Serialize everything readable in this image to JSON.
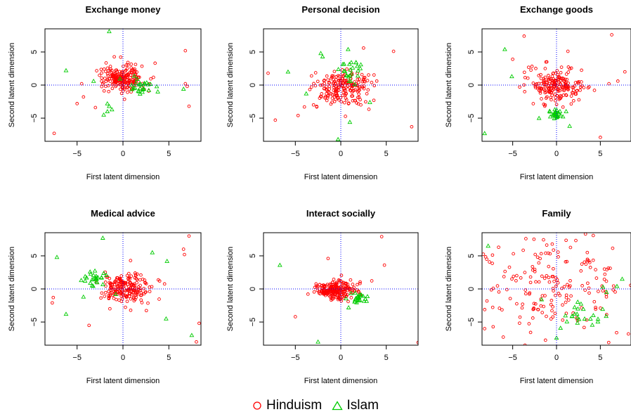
{
  "legend": {
    "hinduism_label": "Hinduism",
    "islam_label": "Islam"
  },
  "colors": {
    "hinduism": "#FF0000",
    "islam": "#00CC00",
    "reference_line": "#0000FF"
  },
  "chart_data": [
    {
      "type": "scatter",
      "title": "Exchange money",
      "xlabel": "First latent dimension",
      "ylabel": "Second latent dimension",
      "xlim": [
        -8.5,
        8.5
      ],
      "ylim": [
        -8.5,
        8.5
      ],
      "x_ticks": [
        -5,
        0,
        5
      ],
      "y_ticks": [
        -5,
        0,
        5
      ],
      "reference_lines": {
        "x": 0,
        "y": 0
      },
      "series": [
        {
          "name": "Hinduism",
          "marker": "circle",
          "cluster": {
            "center": [
              0.0,
              1.0
            ],
            "sx": 1.1,
            "sy": 1.0,
            "n": 210
          },
          "outliers": [
            [
              -7.5,
              -7.3
            ],
            [
              -5.0,
              -2.8
            ],
            [
              -4.3,
              -1.8
            ],
            [
              -3.0,
              -3.4
            ],
            [
              -4.5,
              0.2
            ],
            [
              6.8,
              5.2
            ],
            [
              6.8,
              0.2
            ],
            [
              7.0,
              -0.2
            ],
            [
              7.2,
              -3.2
            ],
            [
              3.5,
              3.3
            ],
            [
              2.8,
              -0.9
            ]
          ]
        },
        {
          "name": "Islam",
          "marker": "triangle",
          "cluster": {
            "center": [
              2.0,
              -0.3
            ],
            "sx": 0.7,
            "sy": 0.6,
            "n": 26
          },
          "outliers": [
            [
              -1.5,
              8.1
            ],
            [
              -6.2,
              2.2
            ],
            [
              -3.2,
              0.6
            ],
            [
              -1.7,
              -2.8
            ],
            [
              -1.5,
              -3.2
            ],
            [
              -1.2,
              -3.7
            ],
            [
              -1.7,
              -4.0
            ],
            [
              -2.1,
              -4.5
            ],
            [
              6.6,
              -0.6
            ],
            [
              3.8,
              -1.0
            ]
          ]
        }
      ]
    },
    {
      "type": "scatter",
      "title": "Personal decision",
      "xlabel": "First latent dimension",
      "ylabel": "Second latent dimension",
      "xlim": [
        -8.5,
        8.5
      ],
      "ylim": [
        -8.5,
        8.5
      ],
      "x_ticks": [
        -5,
        0,
        5
      ],
      "y_ticks": [
        -5,
        0,
        5
      ],
      "reference_lines": {
        "x": 0,
        "y": 0
      },
      "series": [
        {
          "name": "Hinduism",
          "marker": "circle",
          "cluster": {
            "center": [
              0.0,
              -0.3
            ],
            "sx": 1.5,
            "sy": 1.3,
            "n": 200
          },
          "outliers": [
            [
              -8.0,
              1.8
            ],
            [
              -7.2,
              -5.3
            ],
            [
              -4.0,
              -3.3
            ],
            [
              -4.7,
              -4.6
            ],
            [
              5.8,
              5.1
            ],
            [
              7.8,
              -6.3
            ],
            [
              8.7,
              -4.2
            ],
            [
              8.7,
              0.5
            ],
            [
              2.5,
              5.6
            ],
            [
              -3.0,
              -3.0
            ]
          ]
        },
        {
          "name": "Islam",
          "marker": "triangle",
          "cluster": {
            "center": [
              1.2,
              2.0
            ],
            "sx": 0.5,
            "sy": 0.9,
            "n": 24
          },
          "outliers": [
            [
              -2.2,
              4.8
            ],
            [
              -2.0,
              4.3
            ],
            [
              0.8,
              5.4
            ],
            [
              -5.8,
              2.0
            ],
            [
              -3.8,
              -1.3
            ],
            [
              -0.3,
              -8.2
            ],
            [
              1.0,
              -5.6
            ],
            [
              3.2,
              -2.6
            ]
          ]
        }
      ]
    },
    {
      "type": "scatter",
      "title": "Exchange goods",
      "xlabel": "First latent dimension",
      "ylabel": "Second latent dimension",
      "xlim": [
        -8.5,
        8.5
      ],
      "ylim": [
        -8.5,
        8.5
      ],
      "x_ticks": [
        -5,
        0,
        5
      ],
      "y_ticks": [
        -5,
        0,
        5
      ],
      "reference_lines": {
        "x": 0,
        "y": 0
      },
      "series": [
        {
          "name": "Hinduism",
          "marker": "circle",
          "cluster": {
            "center": [
              0.0,
              0.0
            ],
            "sx": 1.5,
            "sy": 1.3,
            "n": 200
          },
          "outliers": [
            [
              -3.7,
              7.4
            ],
            [
              -5.0,
              3.9
            ],
            [
              6.3,
              7.6
            ],
            [
              7.8,
              2.0
            ],
            [
              7.0,
              0.6
            ],
            [
              5.0,
              -7.9
            ],
            [
              -4.2,
              -0.3
            ],
            [
              1.3,
              5.1
            ]
          ]
        },
        {
          "name": "Islam",
          "marker": "triangle",
          "cluster": {
            "center": [
              0.0,
              -4.4
            ],
            "sx": 0.45,
            "sy": 0.5,
            "n": 28
          },
          "outliers": [
            [
              -8.2,
              -7.3
            ],
            [
              -5.9,
              5.4
            ],
            [
              -5.1,
              1.3
            ],
            [
              1.5,
              -6.2
            ],
            [
              -2.0,
              -5.0
            ]
          ]
        }
      ]
    },
    {
      "type": "scatter",
      "title": "Medical advice",
      "xlabel": "First latent dimension",
      "ylabel": "Second latent dimension",
      "xlim": [
        -8.5,
        8.5
      ],
      "ylim": [
        -8.5,
        8.5
      ],
      "x_ticks": [
        -5,
        0,
        5
      ],
      "y_ticks": [
        -5,
        0,
        5
      ],
      "reference_lines": {
        "x": 0,
        "y": 0
      },
      "series": [
        {
          "name": "Hinduism",
          "marker": "circle",
          "cluster": {
            "center": [
              0.3,
              0.2
            ],
            "sx": 1.3,
            "sy": 1.1,
            "n": 200
          },
          "outliers": [
            [
              7.2,
              8.0
            ],
            [
              6.6,
              6.0
            ],
            [
              6.7,
              5.2
            ],
            [
              8.3,
              -5.2
            ],
            [
              8.0,
              -8.0
            ],
            [
              -7.6,
              -1.3
            ],
            [
              -7.7,
              -2.1
            ],
            [
              -3.7,
              -5.5
            ],
            [
              -1.8,
              1.8
            ],
            [
              4.0,
              1.2
            ]
          ]
        },
        {
          "name": "Islam",
          "marker": "triangle",
          "cluster": {
            "center": [
              -3.0,
              1.8
            ],
            "sx": 0.8,
            "sy": 0.7,
            "n": 26
          },
          "outliers": [
            [
              -7.2,
              4.8
            ],
            [
              -2.2,
              7.7
            ],
            [
              -6.2,
              -3.8
            ],
            [
              -4.3,
              -1.2
            ],
            [
              3.2,
              5.5
            ],
            [
              4.8,
              4.2
            ],
            [
              4.7,
              -4.5
            ],
            [
              7.5,
              -7.0
            ],
            [
              -0.8,
              -0.8
            ]
          ]
        }
      ]
    },
    {
      "type": "scatter",
      "title": "Interact socially",
      "xlabel": "First latent dimension",
      "ylabel": "Second latent dimension",
      "xlim": [
        -8.5,
        8.5
      ],
      "ylim": [
        -8.5,
        8.5
      ],
      "x_ticks": [
        -5,
        0,
        5
      ],
      "y_ticks": [
        -5,
        0,
        5
      ],
      "reference_lines": {
        "x": 0,
        "y": 0
      },
      "series": [
        {
          "name": "Hinduism",
          "marker": "circle",
          "cluster": {
            "center": [
              -0.5,
              -0.2
            ],
            "sx": 1.1,
            "sy": 0.75,
            "n": 220
          },
          "outliers": [
            [
              4.5,
              7.9
            ],
            [
              4.8,
              3.6
            ],
            [
              -5.0,
              -4.2
            ],
            [
              -1.4,
              4.6
            ],
            [
              8.5,
              -8.1
            ]
          ]
        },
        {
          "name": "Islam",
          "marker": "triangle",
          "cluster": {
            "center": [
              1.8,
              -1.6
            ],
            "sx": 0.55,
            "sy": 0.55,
            "n": 26
          },
          "outliers": [
            [
              -6.7,
              3.6
            ],
            [
              -2.5,
              -8.0
            ]
          ]
        }
      ]
    },
    {
      "type": "scatter",
      "title": "Family",
      "xlabel": "First latent dimension",
      "ylabel": "Second latent dimension",
      "xlim": [
        -8.5,
        8.5
      ],
      "ylim": [
        -8.5,
        8.5
      ],
      "x_ticks": [
        -5,
        0,
        5
      ],
      "y_ticks": [
        -5,
        0,
        5
      ],
      "reference_lines": {
        "x": 0,
        "y": 0
      },
      "series": [
        {
          "name": "Hinduism",
          "marker": "circle",
          "cluster": {
            "center": [
              0.0,
              0.8
            ],
            "sx": 4.6,
            "sy": 3.4,
            "n": 190
          },
          "outliers": [
            [
              -8.2,
              -6.0
            ],
            [
              8.2,
              -6.8
            ],
            [
              -3.6,
              -8.5
            ],
            [
              3.3,
              8.3
            ]
          ]
        },
        {
          "name": "Islam",
          "marker": "triangle",
          "cluster": {
            "center": [
              2.7,
              -4.2
            ],
            "sx": 1.3,
            "sy": 0.9,
            "n": 22
          },
          "outliers": [
            [
              -7.8,
              6.5
            ],
            [
              5.3,
              0.3
            ],
            [
              6.9,
              0.4
            ],
            [
              -1.7,
              -1.6
            ],
            [
              7.5,
              1.5
            ],
            [
              0.0,
              -7.4
            ],
            [
              5.7,
              -0.5
            ],
            [
              4.2,
              -4.0
            ]
          ]
        }
      ]
    }
  ]
}
